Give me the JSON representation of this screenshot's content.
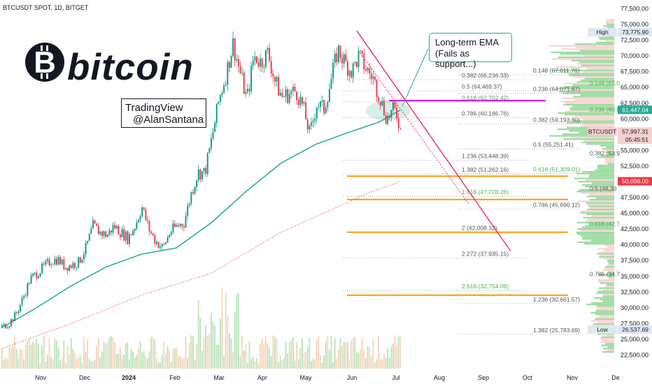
{
  "header": {
    "symbol_line": "BTCUSDT SPOT, 1D, BITGET"
  },
  "logo": {
    "glyph": "B",
    "word": "bitcoin"
  },
  "author_box": {
    "line1": "TradingView",
    "line2": "@AlanSantana"
  },
  "note": {
    "line1": "Long-term EMA",
    "line2": "(Fails as support...)"
  },
  "colors": {
    "up": "#089981",
    "down": "#f23645",
    "ema_long": "#22ab94",
    "ema_slow": "#ef5350",
    "fib_green": "#4caf50",
    "fib_orange": "#ff9800",
    "fib_magenta": "#d500f9",
    "trendline": "#e91e63",
    "current_price": "#f23645"
  },
  "chart_data": {
    "type": "candlestick",
    "title": "BTCUSDT SPOT, 1D, BITGET",
    "ylim": [
      21000,
      78000
    ],
    "x_ticks": [
      "Nov",
      "Dec",
      "2024",
      "Feb",
      "Mar",
      "Apr",
      "May",
      "Jun",
      "Jul",
      "Aug",
      "Sep",
      "Oct",
      "Nov",
      "De"
    ],
    "y_ticks": [
      "22,500.00",
      "25,000.00",
      "27,500.00",
      "30,000.00",
      "32,500.00",
      "35,000.00",
      "37,500.00",
      "40,000.00",
      "42,500.00",
      "45,000.00",
      "47,500.00",
      "50,000.00",
      "52,500.00",
      "55,000.00",
      "57,500.00",
      "60,000.00",
      "62,500.00",
      "65,000.00",
      "67,500.00",
      "70,000.00",
      "72,500.00",
      "75,000.00",
      "77,500.00"
    ],
    "axis_tags": [
      {
        "label": "High",
        "value": "73,775.90",
        "price": 73775.9,
        "style": "high"
      },
      {
        "label": "",
        "value": "61,447.04",
        "price": 61447,
        "style": "ema"
      },
      {
        "label": "BTCUSDT",
        "value": "57,997.31",
        "price": 57997,
        "style": "price"
      },
      {
        "label": "",
        "value": "05:45:51",
        "price": 56700,
        "style": "timer"
      },
      {
        "label": "",
        "value": "50,096.00",
        "price": 50096,
        "style": "ema2"
      },
      {
        "label": "Low",
        "value": "26,537.69",
        "price": 26537,
        "style": "low"
      }
    ],
    "price_path": [
      {
        "t": 0,
        "p": 27000
      },
      {
        "t": 10,
        "p": 27500
      },
      {
        "t": 20,
        "p": 29000
      },
      {
        "t": 30,
        "p": 31500
      },
      {
        "t": 40,
        "p": 34500
      },
      {
        "t": 50,
        "p": 35500
      },
      {
        "t": 60,
        "p": 36500
      },
      {
        "t": 70,
        "p": 37500
      },
      {
        "t": 80,
        "p": 37700
      },
      {
        "t": 90,
        "p": 36500
      },
      {
        "t": 100,
        "p": 36800
      },
      {
        "t": 110,
        "p": 37300
      },
      {
        "t": 120,
        "p": 39500
      },
      {
        "t": 130,
        "p": 43000
      },
      {
        "t": 140,
        "p": 42000
      },
      {
        "t": 150,
        "p": 41500
      },
      {
        "t": 160,
        "p": 43000
      },
      {
        "t": 170,
        "p": 42000
      },
      {
        "t": 180,
        "p": 41000
      },
      {
        "t": 190,
        "p": 43000
      },
      {
        "t": 200,
        "p": 46000
      },
      {
        "t": 210,
        "p": 42500
      },
      {
        "t": 220,
        "p": 40500
      },
      {
        "t": 230,
        "p": 39500
      },
      {
        "t": 240,
        "p": 42000
      },
      {
        "t": 250,
        "p": 43000
      },
      {
        "t": 260,
        "p": 43500
      },
      {
        "t": 270,
        "p": 48000
      },
      {
        "t": 280,
        "p": 51500
      },
      {
        "t": 290,
        "p": 51500
      },
      {
        "t": 300,
        "p": 57000
      },
      {
        "t": 310,
        "p": 63000
      },
      {
        "t": 320,
        "p": 67000
      },
      {
        "t": 330,
        "p": 72000
      },
      {
        "t": 340,
        "p": 67500
      },
      {
        "t": 350,
        "p": 63000
      },
      {
        "t": 360,
        "p": 70000
      },
      {
        "t": 370,
        "p": 69000
      },
      {
        "t": 380,
        "p": 70500
      },
      {
        "t": 390,
        "p": 66000
      },
      {
        "t": 400,
        "p": 63500
      },
      {
        "t": 410,
        "p": 64000
      },
      {
        "t": 420,
        "p": 64500
      },
      {
        "t": 430,
        "p": 62000
      },
      {
        "t": 440,
        "p": 57500
      },
      {
        "t": 450,
        "p": 62500
      },
      {
        "t": 460,
        "p": 61500
      },
      {
        "t": 470,
        "p": 66000
      },
      {
        "t": 480,
        "p": 71000
      },
      {
        "t": 490,
        "p": 69000
      },
      {
        "t": 500,
        "p": 67500
      },
      {
        "t": 510,
        "p": 70000
      },
      {
        "t": 520,
        "p": 68000
      },
      {
        "t": 530,
        "p": 66500
      },
      {
        "t": 540,
        "p": 63500
      },
      {
        "t": 550,
        "p": 60000
      },
      {
        "t": 560,
        "p": 61500
      },
      {
        "t": 565,
        "p": 60500
      },
      {
        "t": 570,
        "p": 57997
      }
    ],
    "ema_long": [
      {
        "t": 0,
        "p": 26800
      },
      {
        "t": 50,
        "p": 30000
      },
      {
        "t": 100,
        "p": 33500
      },
      {
        "t": 150,
        "p": 36500
      },
      {
        "t": 200,
        "p": 38500
      },
      {
        "t": 250,
        "p": 39500
      },
      {
        "t": 300,
        "p": 43500
      },
      {
        "t": 350,
        "p": 48500
      },
      {
        "t": 400,
        "p": 53000
      },
      {
        "t": 450,
        "p": 56000
      },
      {
        "t": 500,
        "p": 58000
      },
      {
        "t": 540,
        "p": 59500
      },
      {
        "t": 570,
        "p": 61400
      }
    ],
    "ema_slow": [
      {
        "t": 0,
        "p": 23500
      },
      {
        "t": 100,
        "p": 27500
      },
      {
        "t": 200,
        "p": 32000
      },
      {
        "t": 300,
        "p": 35500
      },
      {
        "t": 400,
        "p": 42000
      },
      {
        "t": 480,
        "p": 46000
      },
      {
        "t": 530,
        "p": 48500
      },
      {
        "t": 570,
        "p": 50000
      }
    ],
    "fib_right": [
      {
        "label": "0.148 (67,011.76)",
        "price": 67011,
        "style": "gray"
      },
      {
        "label": "0.236 (64,071.67)",
        "price": 64071,
        "style": "gray"
      },
      {
        "label": "0.382 (59,193.80)",
        "price": 59193,
        "style": "gray"
      },
      {
        "label": "0.5 (55,251.41)",
        "price": 55251,
        "style": "gray"
      },
      {
        "label": "0.618 (51,309.01)",
        "price": 51309,
        "style": "green"
      },
      {
        "label": "0.786 (45,696.12)",
        "price": 45696,
        "style": "gray"
      },
      {
        "label": "1.236 (30,661.57)",
        "price": 30661,
        "style": "gray"
      },
      {
        "label": "1.382 (25,783.69)",
        "price": 25783,
        "style": "gray"
      }
    ],
    "fib_mid": [
      {
        "label": "0.382 (66,236.33)",
        "price": 66236,
        "style": "gray"
      },
      {
        "label": "0.5 (64,469.37)",
        "price": 64469,
        "style": "gray"
      },
      {
        "label": "0.618 (62,702.42)",
        "price": 62702,
        "style": "green"
      },
      {
        "label": "0.786 (60,186.76)",
        "price": 60186,
        "style": "gray"
      },
      {
        "label": "1.236 (53,448.39)",
        "price": 53448,
        "style": "gray"
      },
      {
        "label": "1.382 (51,262.16)",
        "price": 51262,
        "style": "gray"
      },
      {
        "label": "1.618 (47,728.26)",
        "price": 47728,
        "style": "green"
      },
      {
        "label": "2 (42,008.32)",
        "price": 42008,
        "style": "gray"
      },
      {
        "label": "2.272 (37,935.15)",
        "price": 37935,
        "style": "gray"
      },
      {
        "label": "2.618 (32,754.09)",
        "price": 32754,
        "style": "green"
      }
    ],
    "fib_partial": [
      {
        "label": "0.148 (65,0",
        "price": 65000
      },
      {
        "label": "0.236 (60,8",
        "price": 60800
      },
      {
        "label": "0.382 (53,9",
        "price": 53900
      },
      {
        "label": "0.5 (48,30",
        "price": 48300
      },
      {
        "label": "0.618 (42,7",
        "price": 42700
      },
      {
        "label": "0.786 (34,7",
        "price": 34700
      }
    ],
    "support_lines": [
      {
        "price": 50900,
        "color": "orange"
      },
      {
        "price": 47200,
        "color": "orange"
      },
      {
        "price": 42000,
        "color": "orange"
      },
      {
        "price": 32000,
        "color": "orange"
      },
      {
        "price": 62900,
        "color": "magenta"
      }
    ],
    "trendline": {
      "from": {
        "t": 510,
        "p": 74000
      },
      "to": {
        "t": 730,
        "p": 39000
      }
    }
  }
}
